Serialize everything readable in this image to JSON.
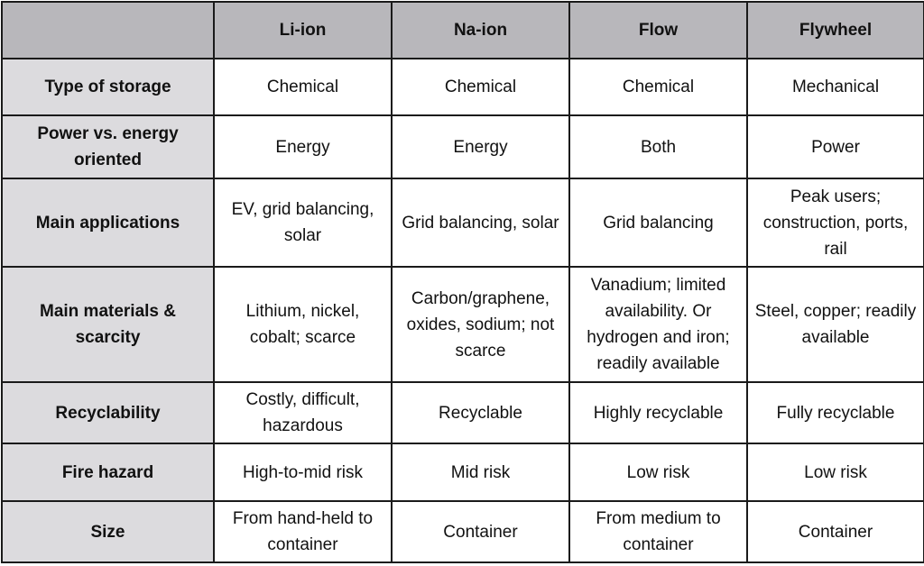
{
  "table": {
    "columns": [
      "",
      "Li-ion",
      "Na-ion",
      "Flow",
      "Flywheel"
    ],
    "rows": [
      {
        "label": "Type of storage",
        "cells": [
          "Chemical",
          "Chemical",
          "Chemical",
          "Mechanical"
        ]
      },
      {
        "label": "Power vs. energy oriented",
        "cells": [
          "Energy",
          "Energy",
          "Both",
          "Power"
        ]
      },
      {
        "label": "Main applications",
        "cells": [
          "EV, grid balancing, solar",
          "Grid balancing, solar",
          "Grid balancing",
          "Peak users; construction, ports, rail"
        ]
      },
      {
        "label": "Main materials & scarcity",
        "cells": [
          "Lithium, nickel, cobalt; scarce",
          "Carbon/graphene, oxides, sodium; not scarce",
          "Vanadium; limited availability. Or hydrogen and iron; readily available",
          "Steel, copper; readily available"
        ]
      },
      {
        "label": "Recyclability",
        "cells": [
          "Costly, difficult, hazardous",
          "Recyclable",
          "Highly recyclable",
          "Fully recyclable"
        ]
      },
      {
        "label": "Fire hazard",
        "cells": [
          "High-to-mid risk",
          "Mid risk",
          "Low risk",
          "Low risk"
        ]
      },
      {
        "label": "Size",
        "cells": [
          "From hand-held to container",
          "Container",
          "From medium to container",
          "Container"
        ]
      }
    ]
  },
  "colors": {
    "header_bg": "#b8b7bb",
    "rowhead_bg": "#dcdbde",
    "cell_bg": "#ffffff",
    "border": "#1a1a1a"
  }
}
